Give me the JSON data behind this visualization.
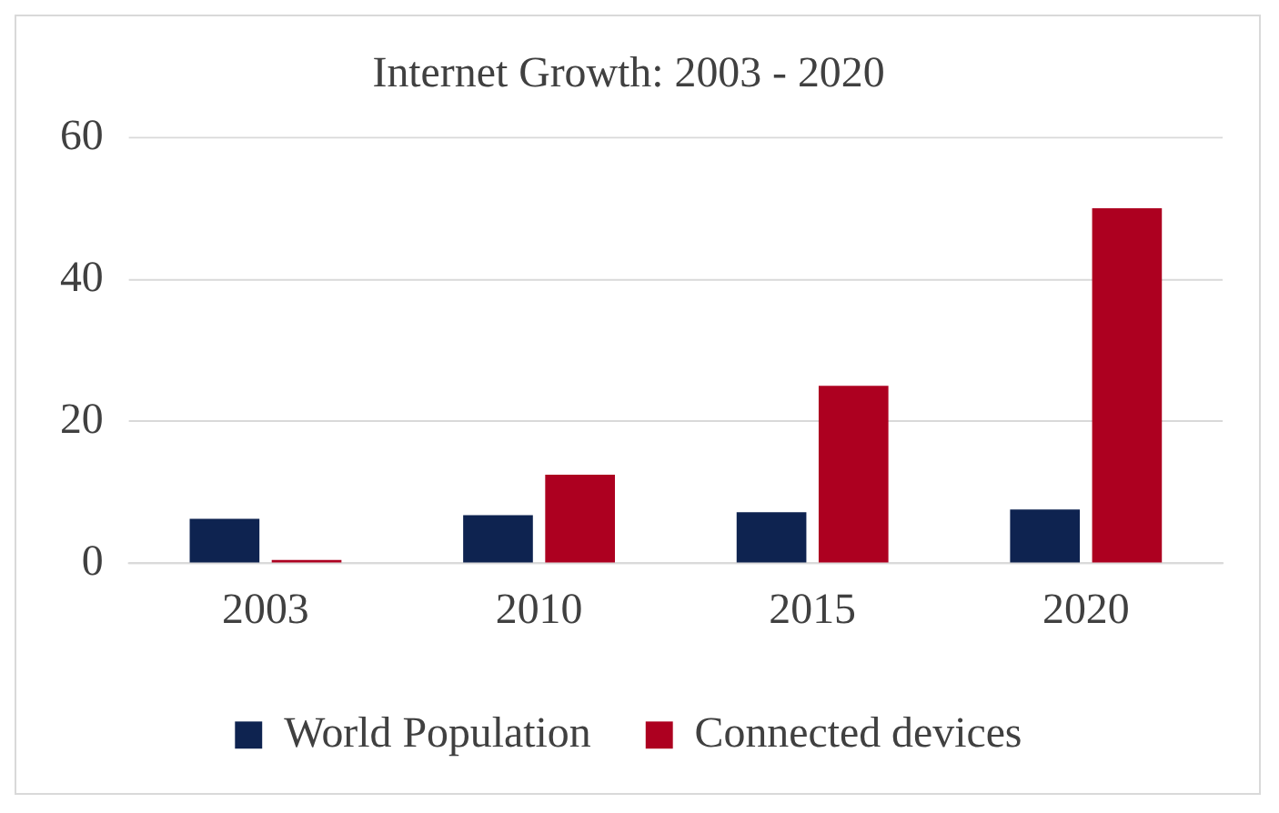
{
  "chart_data": {
    "type": "bar",
    "title": "Internet Growth: 2003 - 2020",
    "categories": [
      "2003",
      "2010",
      "2015",
      "2020"
    ],
    "series": [
      {
        "name": "World Population",
        "color": "#0e2350",
        "values": [
          6.3,
          6.8,
          7.2,
          7.6
        ]
      },
      {
        "name": "Connected devices",
        "color": "#ad0020",
        "values": [
          0.5,
          12.5,
          25,
          50
        ]
      }
    ],
    "ylim": [
      0,
      60
    ],
    "yticks": [
      0,
      20,
      40,
      60
    ],
    "grid": "y",
    "legend": "bottom"
  }
}
